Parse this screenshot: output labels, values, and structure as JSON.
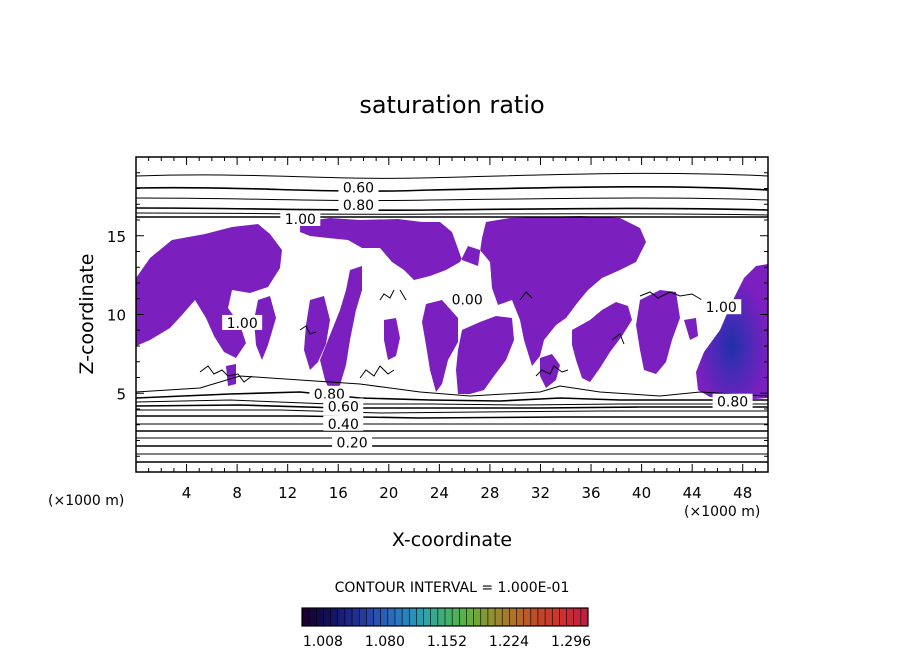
{
  "chart_data": {
    "type": "contour",
    "title": "saturation ratio",
    "xlabel": "X-coordinate",
    "ylabel": "Z-coordinate",
    "x_unit_left": "(×1000 m)",
    "x_unit_right": "(×1000 m)",
    "xlim": [
      0,
      50
    ],
    "ylim": [
      0,
      20
    ],
    "xticks": [
      4,
      8,
      12,
      16,
      20,
      24,
      28,
      32,
      36,
      40,
      44,
      48
    ],
    "yticks": [
      5,
      10,
      15
    ],
    "contour_interval_label": "CONTOUR INTERVAL = 1.000E-01",
    "contour_labels": [
      {
        "text": "0.60",
        "x": 17.6,
        "z": 18.0
      },
      {
        "text": "0.80",
        "x": 17.6,
        "z": 16.9
      },
      {
        "text": "1.00",
        "x": 13.0,
        "z": 16.0
      },
      {
        "text": "1.00",
        "x": 8.4,
        "z": 9.4
      },
      {
        "text": "0.80",
        "x": 15.3,
        "z": 4.9
      },
      {
        "text": "0.60",
        "x": 16.4,
        "z": 4.1
      },
      {
        "text": "0.40",
        "x": 16.4,
        "z": 3.0
      },
      {
        "text": "0.20",
        "x": 17.1,
        "z": 1.8
      },
      {
        "text": "0.80",
        "x": 47.2,
        "z": 4.4
      },
      {
        "text": "0.00",
        "x": 26.2,
        "z": 10.9
      },
      {
        "text": "1.00",
        "x": 46.3,
        "z": 10.4
      }
    ],
    "fill_threshold": 1.0,
    "fill_color": "#7b1fbf",
    "colorbar": {
      "min": 1.0,
      "max": 1.332,
      "tick_labels": [
        "1.008",
        "1.080",
        "1.152",
        "1.224",
        "1.296"
      ],
      "colors": [
        "#1a0030",
        "#10105a",
        "#1e2a8c",
        "#2a4fb0",
        "#2a78c0",
        "#2aa0b0",
        "#40b070",
        "#60b040",
        "#909030",
        "#b07028",
        "#c04828",
        "#d03030",
        "#c02040"
      ]
    },
    "max_region": {
      "x": 46.5,
      "z": 5.3,
      "color": "#2040c0"
    }
  }
}
